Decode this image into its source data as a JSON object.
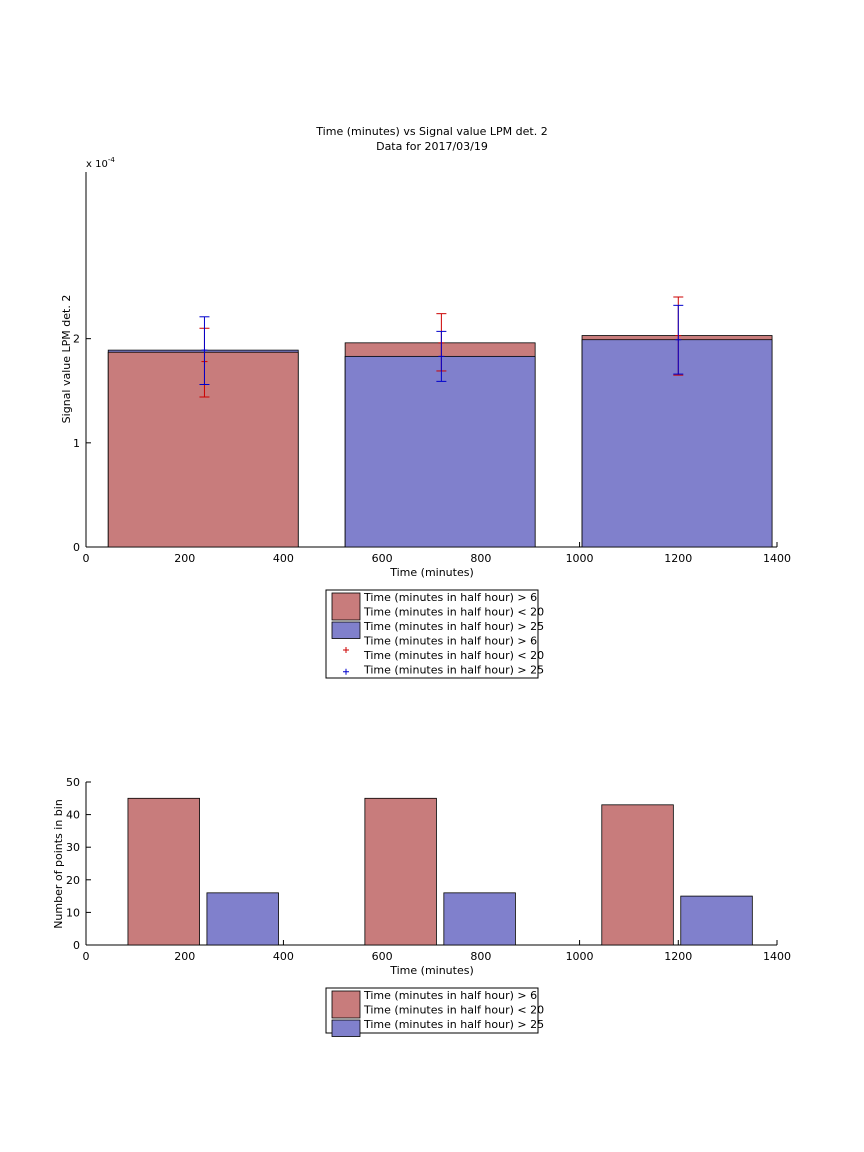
{
  "chart_data": [
    {
      "type": "bar",
      "title": "Time (minutes) vs Signal value LPM det. 2",
      "subtitle": "Data for 2017/03/19",
      "xlabel": "Time (minutes)",
      "ylabel": "Signal value LPM det. 2",
      "exponent_label": "x 10",
      "exponent_power": "-4",
      "xlim": [
        0,
        1400
      ],
      "ylim": [
        0,
        0.00036
      ],
      "xticks": [
        0,
        200,
        400,
        600,
        800,
        1000,
        1200,
        1400
      ],
      "yticks": [
        0,
        1,
        2
      ],
      "ytick_scale": 0.0001,
      "grid": false,
      "bins": [
        {
          "x_start": 45,
          "x_end": 430,
          "center": 240
        },
        {
          "x_start": 525,
          "x_end": 910,
          "center": 720
        },
        {
          "x_start": 1005,
          "x_end": 1390,
          "center": 1200
        }
      ],
      "series": [
        {
          "name": "Time (minutes in half hour) > 6 Time (minutes in half hour) < 20",
          "color": "#c87c7c",
          "values": [
            0.000187,
            0.000196,
            0.000203
          ],
          "err_low": [
            0.000144,
            0.000169,
            0.000165
          ],
          "err_high": [
            0.00021,
            0.000224,
            0.00024
          ],
          "err_mid": [
            0.000178,
            0.000196,
            0.000203
          ],
          "err_color": "#cc0000"
        },
        {
          "name": "Time (minutes in half hour) > 25",
          "color": "#8080cc",
          "values": [
            0.000189,
            0.000183,
            0.000199
          ],
          "err_low": [
            0.000156,
            0.000159,
            0.000166
          ],
          "err_high": [
            0.000221,
            0.000207,
            0.000232
          ],
          "err_mid": [
            0.000189,
            0.000183,
            0.000199
          ],
          "err_color": "#0000cc"
        }
      ],
      "legend": {
        "placement": "below",
        "entries": [
          {
            "kind": "patch",
            "color": "#c87c7c",
            "lines": [
              "Time (minutes in half hour) > 6",
              "Time (minutes in half hour) < 20"
            ]
          },
          {
            "kind": "patch",
            "color": "#8080cc",
            "lines": [
              "Time (minutes in half hour) > 25"
            ]
          },
          {
            "kind": "marker",
            "color": "#cc0000",
            "lines": [
              "Time (minutes in half hour) > 6",
              "Time (minutes in half hour) < 20"
            ]
          },
          {
            "kind": "marker",
            "color": "#0000cc",
            "lines": [
              "Time (minutes in half hour) > 25"
            ]
          }
        ]
      }
    },
    {
      "type": "bar",
      "title": "",
      "xlabel": "Time (minutes)",
      "ylabel": "Number of points in bin",
      "xlim": [
        0,
        1400
      ],
      "ylim": [
        0,
        50
      ],
      "xticks": [
        0,
        200,
        400,
        600,
        800,
        1000,
        1200,
        1400
      ],
      "yticks": [
        0,
        10,
        20,
        30,
        40,
        50
      ],
      "grid": false,
      "bars": [
        {
          "x_start": 85,
          "x_end": 230,
          "value": 45,
          "series": 0
        },
        {
          "x_start": 245,
          "x_end": 390,
          "value": 16,
          "series": 1
        },
        {
          "x_start": 565,
          "x_end": 710,
          "value": 45,
          "series": 0
        },
        {
          "x_start": 725,
          "x_end": 870,
          "value": 16,
          "series": 1
        },
        {
          "x_start": 1045,
          "x_end": 1190,
          "value": 43,
          "series": 0
        },
        {
          "x_start": 1205,
          "x_end": 1350,
          "value": 15,
          "series": 1
        }
      ],
      "series": [
        {
          "name": "Time (minutes in half hour) > 6 Time (minutes in half hour) < 20",
          "color": "#c87c7c",
          "values": [
            45,
            45,
            43
          ]
        },
        {
          "name": "Time (minutes in half hour) > 25",
          "color": "#8080cc",
          "values": [
            16,
            16,
            15
          ]
        }
      ],
      "legend": {
        "placement": "below",
        "entries": [
          {
            "kind": "patch",
            "color": "#c87c7c",
            "lines": [
              "Time (minutes in half hour) > 6",
              "Time (minutes in half hour) < 20"
            ]
          },
          {
            "kind": "patch",
            "color": "#8080cc",
            "lines": [
              "Time (minutes in half hour) > 25"
            ]
          }
        ]
      }
    }
  ]
}
